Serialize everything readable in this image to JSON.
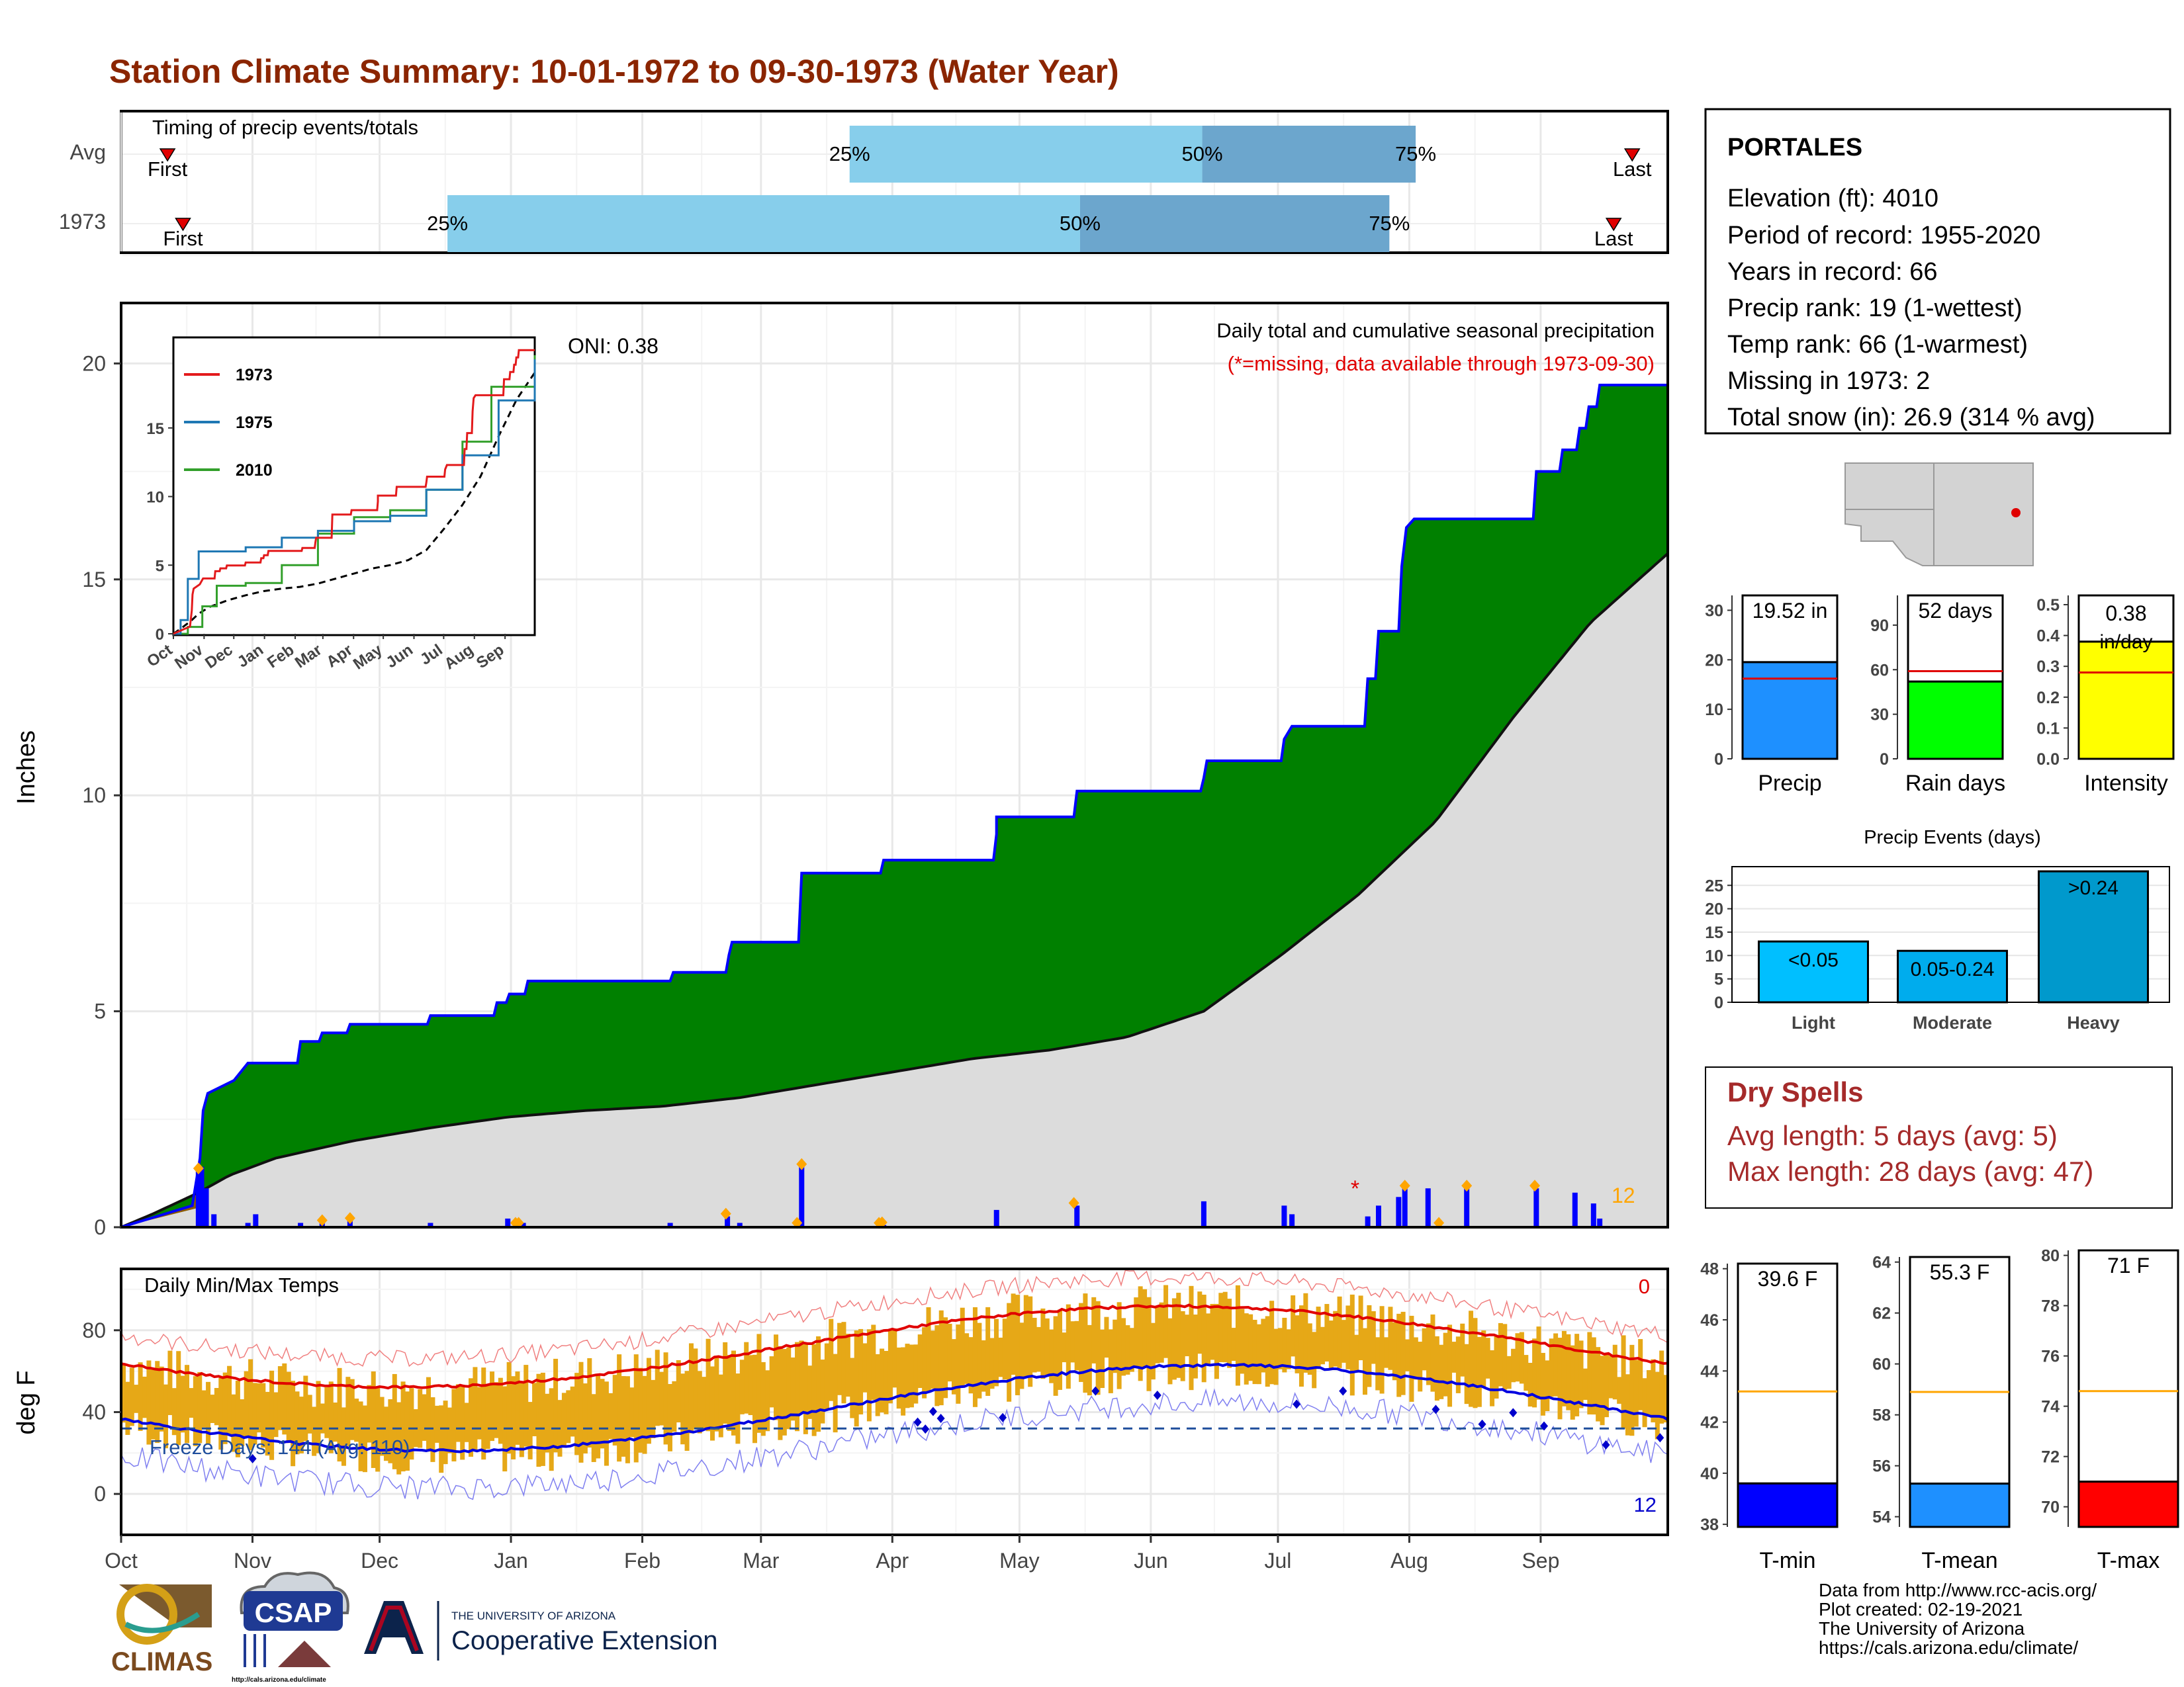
{
  "title": "Station Climate Summary: 10-01-1972 to 09-30-1973 (Water Year)",
  "months": [
    "Oct",
    "Nov",
    "Dec",
    "Jan",
    "Feb",
    "Mar",
    "Apr",
    "May",
    "Jun",
    "Jul",
    "Aug",
    "Sep"
  ],
  "chart_data": [
    {
      "type": "timing",
      "label": "Timing of precip events/totals",
      "rows": [
        {
          "name": "Avg",
          "first": 0.03,
          "p25": 0.471,
          "p50": 0.699,
          "p75": 0.837,
          "last": 0.977
        },
        {
          "name": "1973",
          "first": 0.04,
          "p25": 0.211,
          "p50": 0.62,
          "p75": 0.82,
          "last": 0.965
        }
      ],
      "first_label": "First",
      "last_label": "Last",
      "pct_labels": [
        "25%",
        "50%",
        "75%"
      ]
    },
    {
      "type": "area",
      "title": "Daily total and cumulative seasonal precipitation",
      "subtitle": "(*=missing, data available through 1973-09-30)",
      "ylabel": "Inches",
      "ylim": [
        0,
        21.4
      ],
      "yticks": [
        0,
        5,
        10,
        15,
        20
      ],
      "oni_label": "ONI: 0.38",
      "count_label": "12",
      "cum_1973": [
        [
          0,
          0
        ],
        [
          0.046,
          0.5
        ],
        [
          0.051,
          1.6
        ],
        [
          0.053,
          2.7
        ],
        [
          0.056,
          3.1
        ],
        [
          0.073,
          3.4
        ],
        [
          0.082,
          3.8
        ],
        [
          0.114,
          3.8
        ],
        [
          0.116,
          4.3
        ],
        [
          0.128,
          4.3
        ],
        [
          0.13,
          4.5
        ],
        [
          0.146,
          4.5
        ],
        [
          0.148,
          4.7
        ],
        [
          0.198,
          4.7
        ],
        [
          0.2,
          4.9
        ],
        [
          0.241,
          4.9
        ],
        [
          0.243,
          5.2
        ],
        [
          0.249,
          5.2
        ],
        [
          0.251,
          5.4
        ],
        [
          0.261,
          5.4
        ],
        [
          0.263,
          5.7
        ],
        [
          0.355,
          5.7
        ],
        [
          0.357,
          5.9
        ],
        [
          0.391,
          5.9
        ],
        [
          0.393,
          6.3
        ],
        [
          0.395,
          6.6
        ],
        [
          0.438,
          6.6
        ],
        [
          0.44,
          8.2
        ],
        [
          0.491,
          8.2
        ],
        [
          0.493,
          8.5
        ],
        [
          0.564,
          8.5
        ],
        [
          0.566,
          9.1
        ],
        [
          0.566,
          9.5
        ],
        [
          0.616,
          9.5
        ],
        [
          0.618,
          10.1
        ],
        [
          0.698,
          10.1
        ],
        [
          0.7,
          10.4
        ],
        [
          0.702,
          10.8
        ],
        [
          0.75,
          10.8
        ],
        [
          0.752,
          11.3
        ],
        [
          0.757,
          11.6
        ],
        [
          0.804,
          11.6
        ],
        [
          0.806,
          12.7
        ],
        [
          0.811,
          12.7
        ],
        [
          0.813,
          13.8
        ],
        [
          0.826,
          13.8
        ],
        [
          0.828,
          15.3
        ],
        [
          0.831,
          16.2
        ],
        [
          0.836,
          16.4
        ],
        [
          0.913,
          16.4
        ],
        [
          0.915,
          17.5
        ],
        [
          0.93,
          17.5
        ],
        [
          0.932,
          18.0
        ],
        [
          0.941,
          18.0
        ],
        [
          0.943,
          18.5
        ],
        [
          0.947,
          18.5
        ],
        [
          0.949,
          19.0
        ],
        [
          0.954,
          19.0
        ],
        [
          0.956,
          19.5
        ],
        [
          1,
          19.5
        ]
      ],
      "cum_avg": [
        [
          0,
          0
        ],
        [
          0.02,
          0.3
        ],
        [
          0.05,
          0.8
        ],
        [
          0.07,
          1.2
        ],
        [
          0.1,
          1.6
        ],
        [
          0.15,
          2.0
        ],
        [
          0.2,
          2.3
        ],
        [
          0.25,
          2.55
        ],
        [
          0.3,
          2.7
        ],
        [
          0.35,
          2.8
        ],
        [
          0.4,
          3.0
        ],
        [
          0.45,
          3.3
        ],
        [
          0.5,
          3.6
        ],
        [
          0.55,
          3.9
        ],
        [
          0.6,
          4.1
        ],
        [
          0.65,
          4.4
        ],
        [
          0.7,
          5.0
        ],
        [
          0.75,
          6.3
        ],
        [
          0.8,
          7.7
        ],
        [
          0.85,
          9.4
        ],
        [
          0.9,
          11.8
        ],
        [
          0.95,
          14.0
        ],
        [
          1,
          15.6
        ]
      ],
      "daily_bars": [
        [
          0.05,
          1.3
        ],
        [
          0.052,
          1.4
        ],
        [
          0.055,
          0.9
        ],
        [
          0.06,
          0.3
        ],
        [
          0.082,
          0.1
        ],
        [
          0.087,
          0.3
        ],
        [
          0.116,
          0.1
        ],
        [
          0.13,
          0.1
        ],
        [
          0.148,
          0.15
        ],
        [
          0.2,
          0.1
        ],
        [
          0.25,
          0.2
        ],
        [
          0.26,
          0.1
        ],
        [
          0.355,
          0.1
        ],
        [
          0.392,
          0.25
        ],
        [
          0.4,
          0.1
        ],
        [
          0.44,
          1.4
        ],
        [
          0.493,
          0.05
        ],
        [
          0.566,
          0.4
        ],
        [
          0.618,
          0.5
        ],
        [
          0.7,
          0.6
        ],
        [
          0.752,
          0.5
        ],
        [
          0.757,
          0.3
        ],
        [
          0.806,
          0.25
        ],
        [
          0.813,
          0.5
        ],
        [
          0.826,
          0.7
        ],
        [
          0.83,
          0.9
        ],
        [
          0.845,
          0.9
        ],
        [
          0.87,
          0.9
        ],
        [
          0.94,
          0.8
        ],
        [
          0.915,
          0.9
        ],
        [
          0.952,
          0.55
        ],
        [
          0.956,
          0.2
        ]
      ],
      "flagged_days": [
        0.05,
        0.13,
        0.148,
        0.255,
        0.257,
        0.391,
        0.437,
        0.44,
        0.49,
        0.492,
        0.616,
        0.83,
        0.852,
        0.87,
        0.914
      ],
      "inset": {
        "series": [
          {
            "name": "1973",
            "color": "#e31a1c"
          },
          {
            "name": "1975",
            "color": "#1f78b4"
          },
          {
            "name": "2010",
            "color": "#33a02c"
          }
        ],
        "yticks": [
          0,
          5,
          10,
          15
        ],
        "ylim": [
          0,
          21.5
        ]
      }
    },
    {
      "type": "line",
      "title": "Daily Min/Max Temps",
      "ylabel": "deg F",
      "ylim": [
        -20,
        110
      ],
      "yticks": [
        0,
        40,
        80
      ],
      "freeze_label": "Freeze Days: 144 (Avg: 110)",
      "freeze_line": 32,
      "max_count": "0",
      "min_count": "12"
    },
    {
      "type": "bar",
      "categories": [
        "Precip"
      ],
      "values": [
        19.52
      ],
      "value_label": "19.52 in",
      "avg": 16.2,
      "ylim": [
        0,
        33
      ],
      "yticks": [
        0,
        10,
        20,
        30
      ],
      "color": "#1e90ff"
    },
    {
      "type": "bar",
      "categories": [
        "Rain days"
      ],
      "values": [
        52
      ],
      "value_label": "52 days",
      "avg": 59,
      "ylim": [
        0,
        110
      ],
      "yticks": [
        0,
        30,
        60,
        90
      ],
      "color": "#00ff00"
    },
    {
      "type": "bar",
      "categories": [
        "Intensity"
      ],
      "values": [
        0.38
      ],
      "value_label": "0.38",
      "value_unit": "in/day",
      "avg": 0.28,
      "ylim": [
        0,
        0.53
      ],
      "yticks": [
        0.0,
        0.1,
        0.2,
        0.3,
        0.4,
        0.5
      ],
      "color": "#ffff00"
    },
    {
      "type": "bar",
      "title": "Precip Events (days)",
      "categories": [
        "Light",
        "Moderate",
        "Heavy"
      ],
      "values": [
        13,
        11,
        28
      ],
      "bar_labels": [
        "<0.05",
        "0.05-0.24",
        ">0.24"
      ],
      "ylim": [
        0,
        29
      ],
      "yticks": [
        0,
        5,
        10,
        15,
        20,
        25
      ],
      "colors": [
        "#00bfff",
        "#00aced",
        "#0099cc"
      ]
    },
    {
      "type": "bar",
      "categories": [
        "T-min"
      ],
      "values": [
        39.6
      ],
      "value_label": "39.6 F",
      "avg": 43.2,
      "ylim": [
        37.9,
        48.2
      ],
      "yticks": [
        38,
        40,
        42,
        44,
        46,
        48
      ],
      "color": "#0000ff"
    },
    {
      "type": "bar",
      "categories": [
        "T-mean"
      ],
      "values": [
        55.3
      ],
      "value_label": "55.3 F",
      "avg": 58.9,
      "ylim": [
        53.6,
        64.2
      ],
      "yticks": [
        54,
        56,
        58,
        60,
        62,
        64
      ],
      "color": "#1e90ff"
    },
    {
      "type": "bar",
      "categories": [
        "T-max"
      ],
      "values": [
        71
      ],
      "value_label": "71 F",
      "avg": 74.6,
      "ylim": [
        69.2,
        80.2
      ],
      "yticks": [
        70,
        72,
        74,
        76,
        78,
        80
      ],
      "color": "#ff0000"
    }
  ],
  "station": {
    "name": "PORTALES",
    "lines": [
      "Elevation (ft): 4010",
      "Period of record: 1955-2020",
      "Years in record: 66",
      "Precip rank: 19 (1-wettest)",
      "Temp rank: 66 (1-warmest)",
      "Missing in 1973: 2",
      "Total snow (in): 26.9 (314 % avg)"
    ]
  },
  "dry_spells": {
    "title": "Dry Spells",
    "avg": "Avg length: 5 days (avg: 5)",
    "max": "Max length: 28 days (avg: 47)"
  },
  "credits": [
    "Data from http://www.rcc-acis.org/",
    "Plot created: 02-19-2021",
    "The University of Arizona",
    "https://cals.arizona.edu/climate/"
  ],
  "logos": {
    "climas": "CLIMAS",
    "csap": "CSAP",
    "csap_url": "http://cals.arizona.edu/climate",
    "ua_line1": "THE UNIVERSITY OF ARIZONA",
    "ua_line2": "Cooperative Extension"
  },
  "colors": {
    "title": "#8b2500",
    "green": "#008000",
    "blue_line": "#0000ff",
    "gray_area": "#dcdcdc",
    "orange": "#ffa500",
    "gold": "#e6a817",
    "dry": "#a52a2a"
  }
}
